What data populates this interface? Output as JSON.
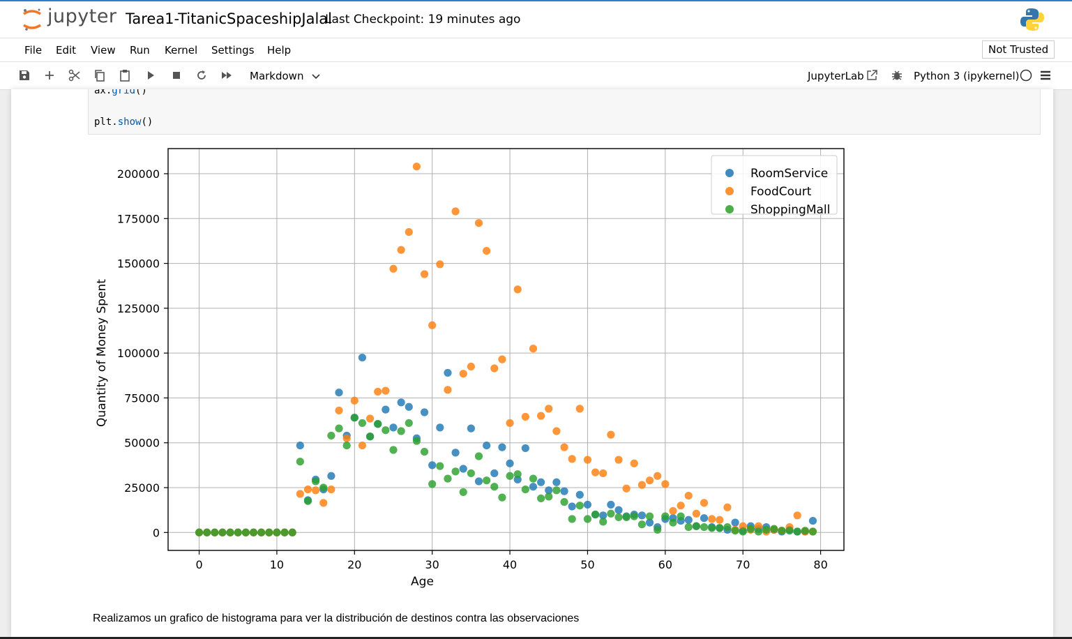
{
  "header": {
    "logo_text": "jupyter",
    "notebook_title": "Tarea1-TitanicSpaceshipJalal",
    "checkpoint": "Last Checkpoint: 19 minutes ago"
  },
  "menu": {
    "items": [
      "File",
      "Edit",
      "View",
      "Run",
      "Kernel",
      "Settings",
      "Help"
    ],
    "trusted": "Not Trusted"
  },
  "toolbar": {
    "icons": [
      "save-icon",
      "add-cell-icon",
      "cut-icon",
      "copy-icon",
      "paste-icon",
      "run-icon",
      "stop-icon",
      "restart-icon",
      "fast-forward-icon"
    ],
    "cell_type": "Markdown",
    "jupyterlab": "JupyterLab",
    "kernel": "Python 3 (ipykernel)"
  },
  "code": {
    "line1_obj": "ax.",
    "line1_fn": "grid",
    "line1_end": "()",
    "line2_obj": "plt.",
    "line2_fn": "show",
    "line2_end": "()"
  },
  "markdown_text": "Realizamos un grafico de histograma para ver la distribución de destinos contra las observaciones",
  "colors": {
    "roomservice": "#1f77b4",
    "foodcourt": "#ff7f0e",
    "shoppingmall": "#2ca02c",
    "accent": "#f37626"
  },
  "chart_data": {
    "type": "scatter",
    "title": "",
    "xlabel": "Age",
    "ylabel": "Quantity of Money Spent",
    "xlim": [
      -4,
      83
    ],
    "ylim": [
      -10000,
      214000
    ],
    "xticks": [
      0,
      10,
      20,
      30,
      40,
      50,
      60,
      70,
      80
    ],
    "yticks": [
      0,
      25000,
      50000,
      75000,
      100000,
      125000,
      150000,
      175000,
      200000
    ],
    "grid": true,
    "legend_position": "top-right",
    "series": [
      {
        "name": "RoomService",
        "color": "#1f77b4",
        "points": [
          [
            0,
            0
          ],
          [
            1,
            0
          ],
          [
            2,
            0
          ],
          [
            3,
            0
          ],
          [
            4,
            0
          ],
          [
            5,
            0
          ],
          [
            6,
            0
          ],
          [
            7,
            0
          ],
          [
            8,
            0
          ],
          [
            9,
            0
          ],
          [
            10,
            0
          ],
          [
            11,
            0
          ],
          [
            12,
            0
          ],
          [
            13,
            48500
          ],
          [
            14,
            18000
          ],
          [
            15,
            29500
          ],
          [
            16,
            24000
          ],
          [
            17,
            31500
          ],
          [
            18,
            78000
          ],
          [
            19,
            54000
          ],
          [
            20,
            64000
          ],
          [
            21,
            97500
          ],
          [
            22,
            53500
          ],
          [
            23,
            60500
          ],
          [
            24,
            68500
          ],
          [
            25,
            58500
          ],
          [
            26,
            72500
          ],
          [
            27,
            70000
          ],
          [
            28,
            52500
          ],
          [
            29,
            67000
          ],
          [
            30,
            37500
          ],
          [
            31,
            58500
          ],
          [
            32,
            89000
          ],
          [
            33,
            44500
          ],
          [
            34,
            35500
          ],
          [
            35,
            58000
          ],
          [
            36,
            28500
          ],
          [
            37,
            48500
          ],
          [
            38,
            33000
          ],
          [
            39,
            47500
          ],
          [
            40,
            38500
          ],
          [
            41,
            29500
          ],
          [
            42,
            47000
          ],
          [
            43,
            25500
          ],
          [
            44,
            28000
          ],
          [
            45,
            23500
          ],
          [
            46,
            28000
          ],
          [
            47,
            23000
          ],
          [
            48,
            14500
          ],
          [
            49,
            21000
          ],
          [
            50,
            15500
          ],
          [
            51,
            10000
          ],
          [
            52,
            9500
          ],
          [
            53,
            15500
          ],
          [
            54,
            12500
          ],
          [
            55,
            9000
          ],
          [
            56,
            10000
          ],
          [
            57,
            9500
          ],
          [
            58,
            5500
          ],
          [
            59,
            3000
          ],
          [
            60,
            7500
          ],
          [
            61,
            8000
          ],
          [
            62,
            6500
          ],
          [
            63,
            7000
          ],
          [
            64,
            3500
          ],
          [
            65,
            8000
          ],
          [
            66,
            3000
          ],
          [
            67,
            2500
          ],
          [
            68,
            1500
          ],
          [
            69,
            5500
          ],
          [
            70,
            1000
          ],
          [
            71,
            3500
          ],
          [
            72,
            2000
          ],
          [
            73,
            3000
          ],
          [
            74,
            1500
          ],
          [
            75,
            500
          ],
          [
            76,
            1500
          ],
          [
            77,
            500
          ],
          [
            78,
            500
          ],
          [
            79,
            6500
          ]
        ]
      },
      {
        "name": "FoodCourt",
        "color": "#ff7f0e",
        "points": [
          [
            0,
            0
          ],
          [
            1,
            0
          ],
          [
            2,
            0
          ],
          [
            3,
            0
          ],
          [
            4,
            0
          ],
          [
            5,
            0
          ],
          [
            6,
            0
          ],
          [
            7,
            0
          ],
          [
            8,
            0
          ],
          [
            9,
            0
          ],
          [
            10,
            0
          ],
          [
            11,
            0
          ],
          [
            12,
            0
          ],
          [
            13,
            21500
          ],
          [
            14,
            24000
          ],
          [
            15,
            23500
          ],
          [
            16,
            16500
          ],
          [
            17,
            24000
          ],
          [
            18,
            68000
          ],
          [
            19,
            52500
          ],
          [
            20,
            73500
          ],
          [
            21,
            48500
          ],
          [
            22,
            63500
          ],
          [
            23,
            78500
          ],
          [
            24,
            79000
          ],
          [
            25,
            147000
          ],
          [
            26,
            157500
          ],
          [
            27,
            167500
          ],
          [
            28,
            204000
          ],
          [
            29,
            144000
          ],
          [
            30,
            115500
          ],
          [
            31,
            149500
          ],
          [
            32,
            79500
          ],
          [
            33,
            179000
          ],
          [
            34,
            88500
          ],
          [
            35,
            92500
          ],
          [
            36,
            172500
          ],
          [
            37,
            157000
          ],
          [
            38,
            91500
          ],
          [
            39,
            96500
          ],
          [
            40,
            61000
          ],
          [
            41,
            135500
          ],
          [
            42,
            64500
          ],
          [
            43,
            102500
          ],
          [
            44,
            65000
          ],
          [
            45,
            69000
          ],
          [
            46,
            56500
          ],
          [
            47,
            47500
          ],
          [
            48,
            41000
          ],
          [
            49,
            69000
          ],
          [
            50,
            40500
          ],
          [
            51,
            33500
          ],
          [
            52,
            33000
          ],
          [
            53,
            54500
          ],
          [
            54,
            40500
          ],
          [
            55,
            24500
          ],
          [
            56,
            38500
          ],
          [
            57,
            26500
          ],
          [
            58,
            29000
          ],
          [
            59,
            31500
          ],
          [
            60,
            27000
          ],
          [
            61,
            12000
          ],
          [
            62,
            15000
          ],
          [
            63,
            20500
          ],
          [
            64,
            10500
          ],
          [
            65,
            16500
          ],
          [
            66,
            7500
          ],
          [
            67,
            7000
          ],
          [
            68,
            14000
          ],
          [
            69,
            1500
          ],
          [
            70,
            3500
          ],
          [
            71,
            1500
          ],
          [
            72,
            3500
          ],
          [
            73,
            500
          ],
          [
            74,
            1500
          ],
          [
            75,
            1000
          ],
          [
            76,
            3000
          ],
          [
            77,
            9500
          ],
          [
            78,
            500
          ],
          [
            79,
            500
          ]
        ]
      },
      {
        "name": "ShoppingMall",
        "color": "#2ca02c",
        "points": [
          [
            0,
            0
          ],
          [
            1,
            0
          ],
          [
            2,
            0
          ],
          [
            3,
            0
          ],
          [
            4,
            0
          ],
          [
            5,
            0
          ],
          [
            6,
            0
          ],
          [
            7,
            0
          ],
          [
            8,
            0
          ],
          [
            9,
            0
          ],
          [
            10,
            0
          ],
          [
            11,
            0
          ],
          [
            12,
            0
          ],
          [
            13,
            39500
          ],
          [
            14,
            17500
          ],
          [
            15,
            28500
          ],
          [
            16,
            25000
          ],
          [
            17,
            54000
          ],
          [
            18,
            58000
          ],
          [
            19,
            48500
          ],
          [
            20,
            64000
          ],
          [
            21,
            61000
          ],
          [
            22,
            53500
          ],
          [
            23,
            60500
          ],
          [
            24,
            57000
          ],
          [
            25,
            46000
          ],
          [
            26,
            56500
          ],
          [
            27,
            61000
          ],
          [
            28,
            51000
          ],
          [
            29,
            45000
          ],
          [
            30,
            27000
          ],
          [
            31,
            37000
          ],
          [
            32,
            30000
          ],
          [
            33,
            34000
          ],
          [
            34,
            22500
          ],
          [
            35,
            33000
          ],
          [
            36,
            42500
          ],
          [
            37,
            29000
          ],
          [
            38,
            25500
          ],
          [
            39,
            19500
          ],
          [
            40,
            31500
          ],
          [
            41,
            32500
          ],
          [
            42,
            24000
          ],
          [
            43,
            30000
          ],
          [
            44,
            19000
          ],
          [
            45,
            20000
          ],
          [
            46,
            23500
          ],
          [
            47,
            17000
          ],
          [
            48,
            7500
          ],
          [
            49,
            15000
          ],
          [
            50,
            7500
          ],
          [
            51,
            10000
          ],
          [
            52,
            6000
          ],
          [
            53,
            10500
          ],
          [
            54,
            8500
          ],
          [
            55,
            8500
          ],
          [
            56,
            9000
          ],
          [
            57,
            4500
          ],
          [
            58,
            9000
          ],
          [
            59,
            1500
          ],
          [
            60,
            9000
          ],
          [
            61,
            5500
          ],
          [
            62,
            9000
          ],
          [
            63,
            3000
          ],
          [
            64,
            3500
          ],
          [
            65,
            3000
          ],
          [
            66,
            2500
          ],
          [
            67,
            2500
          ],
          [
            68,
            3000
          ],
          [
            69,
            1000
          ],
          [
            70,
            500
          ],
          [
            71,
            2000
          ],
          [
            72,
            500
          ],
          [
            73,
            1500
          ],
          [
            74,
            2000
          ],
          [
            75,
            1000
          ],
          [
            76,
            1000
          ],
          [
            77,
            500
          ],
          [
            78,
            1000
          ],
          [
            79,
            500
          ]
        ]
      }
    ]
  }
}
